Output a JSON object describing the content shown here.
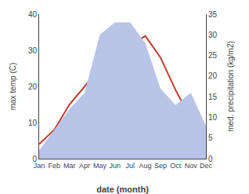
{
  "chart_data": {
    "type": "line",
    "xlabel": "date (month)",
    "ylabel": "max temp (C)",
    "y2label": "med. precipitation (kg/m2)",
    "categories": [
      "Jan",
      "Feb",
      "Mar",
      "Apr",
      "May",
      "Jun",
      "Jul",
      "Aug",
      "Sep",
      "Oct",
      "Nov",
      "Dec"
    ],
    "series": [
      {
        "type": "area",
        "axis": "y2",
        "color": "#b8c4e8",
        "values": [
          2,
          7,
          12,
          16,
          30,
          33,
          33,
          28,
          17,
          13,
          16,
          8
        ]
      },
      {
        "type": "line",
        "color": "#c0392b",
        "values": [
          4,
          8,
          15,
          20,
          25,
          29,
          31,
          34,
          28,
          19,
          11,
          6
        ]
      }
    ],
    "ylim": [
      0,
      40
    ],
    "yticks": [
      0,
      10,
      20,
      30,
      40
    ],
    "y2lim": [
      0,
      35
    ],
    "y2ticks": [
      0,
      5,
      10,
      15,
      20,
      25,
      30,
      35
    ],
    "grid": false
  }
}
